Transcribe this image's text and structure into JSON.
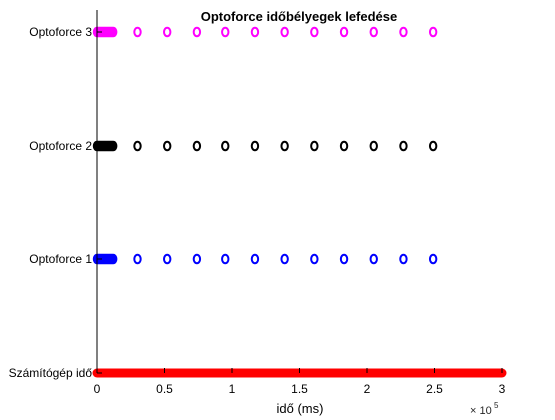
{
  "chart_data": {
    "type": "scatter",
    "title": "Optoforce időbélyegek lefedése",
    "xlabel": "idő (ms)",
    "ylabel": "",
    "x_exponent_label": "× 10",
    "x_exponent": "5",
    "xlim": [
      0,
      300000
    ],
    "xticks": [
      0,
      50000,
      100000,
      150000,
      200000,
      250000,
      300000
    ],
    "xtick_labels": [
      "0",
      "0.5",
      "1",
      "1.5",
      "2",
      "2.5",
      "3"
    ],
    "categories": [
      "Számítógép idő",
      "Optoforce 1",
      "Optoforce 2",
      "Optoforce 3"
    ],
    "grid": false,
    "legend": "none",
    "series": [
      {
        "category": "Számítógép idő",
        "color": "#ff0000",
        "continuous_range": [
          0,
          300000
        ],
        "x": []
      },
      {
        "category": "Optoforce 1",
        "color": "#0000ff",
        "x": [
          0,
          1000,
          2000,
          3000,
          4000,
          5000,
          6000,
          7000,
          8000,
          9000,
          10000,
          11000,
          12000,
          30000,
          52000,
          74000,
          95000,
          117000,
          139000,
          161000,
          183000,
          205000,
          227000,
          249000
        ]
      },
      {
        "category": "Optoforce 2",
        "color": "#000000",
        "x": [
          0,
          1000,
          2000,
          3000,
          4000,
          5000,
          6000,
          7000,
          8000,
          9000,
          10000,
          11000,
          12000,
          30000,
          52000,
          74000,
          95000,
          117000,
          139000,
          161000,
          183000,
          205000,
          227000,
          249000
        ]
      },
      {
        "category": "Optoforce 3",
        "color": "#ff00ff",
        "x": [
          0,
          1000,
          2000,
          3000,
          4000,
          5000,
          6000,
          7000,
          8000,
          9000,
          10000,
          11000,
          12000,
          30000,
          52000,
          74000,
          95000,
          117000,
          139000,
          161000,
          183000,
          205000,
          227000,
          249000
        ]
      }
    ]
  }
}
